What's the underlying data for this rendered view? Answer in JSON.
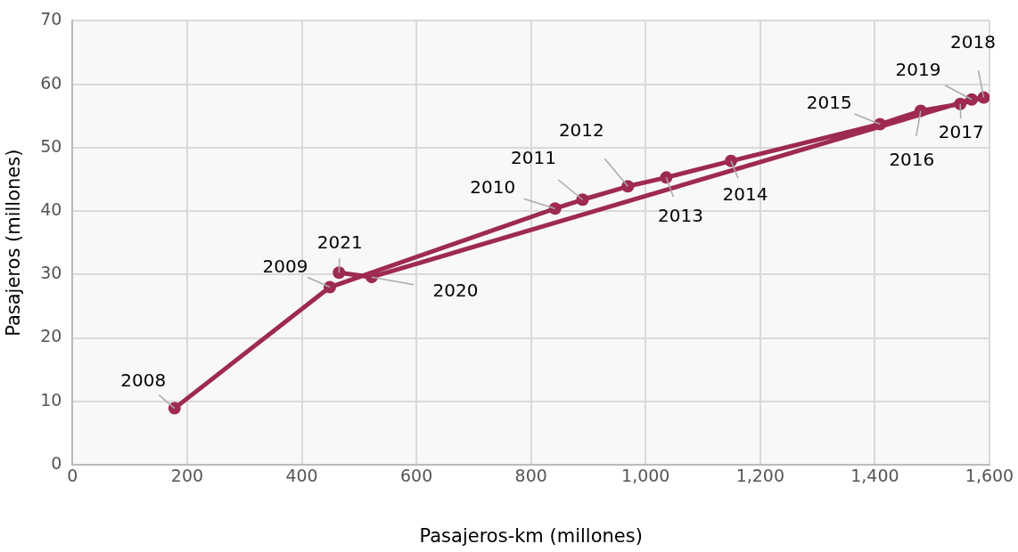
{
  "chart_data": {
    "type": "line",
    "xlabel": "Pasajeros-km (millones)",
    "ylabel": "Pasajeros (millones)",
    "series": [
      {
        "color": "#9e2a4f",
        "x": [
          178,
          449,
          842,
          890,
          969,
          1036,
          1149,
          1409,
          1480,
          1549,
          1590,
          1569,
          522,
          465
        ],
        "values": [
          8.9,
          28.0,
          40.4,
          41.8,
          43.9,
          45.3,
          47.9,
          53.7,
          55.8,
          56.9,
          57.9,
          57.6,
          29.6,
          30.3
        ]
      }
    ],
    "annotations": [
      {
        "text": "2008",
        "x": 178,
        "y": 8.9
      },
      {
        "text": "2009",
        "x": 449,
        "y": 28.0
      },
      {
        "text": "2010",
        "x": 842,
        "y": 40.4
      },
      {
        "text": "2011",
        "x": 890,
        "y": 41.8
      },
      {
        "text": "2012",
        "x": 969,
        "y": 43.9
      },
      {
        "text": "2013",
        "x": 1036,
        "y": 45.3
      },
      {
        "text": "2014",
        "x": 1149,
        "y": 47.9
      },
      {
        "text": "2015",
        "x": 1409,
        "y": 53.7
      },
      {
        "text": "2016",
        "x": 1480,
        "y": 55.8
      },
      {
        "text": "2017",
        "x": 1549,
        "y": 56.9
      },
      {
        "text": "2018",
        "x": 1590,
        "y": 57.9
      },
      {
        "text": "2019",
        "x": 1569,
        "y": 57.6
      },
      {
        "text": "2020",
        "x": 522,
        "y": 29.6
      },
      {
        "text": "2021",
        "x": 465,
        "y": 30.3
      }
    ],
    "xlim": [
      0,
      1600
    ],
    "xticks": [
      {
        "value": 0,
        "label": "0"
      },
      {
        "value": 200,
        "label": "200"
      },
      {
        "value": 400,
        "label": "400"
      },
      {
        "value": 600,
        "label": "600"
      },
      {
        "value": 800,
        "label": "800"
      },
      {
        "value": 1000,
        "label": "1,000"
      },
      {
        "value": 1200,
        "label": "1,200"
      },
      {
        "value": 1400,
        "label": "1,400"
      },
      {
        "value": 1600,
        "label": "1,600"
      }
    ],
    "ylim": [
      0,
      70
    ],
    "yticks": [
      0,
      10,
      20,
      30,
      40,
      50,
      60,
      70
    ],
    "grid": true,
    "legend": false,
    "marker": "circle",
    "line_style": "solid"
  }
}
